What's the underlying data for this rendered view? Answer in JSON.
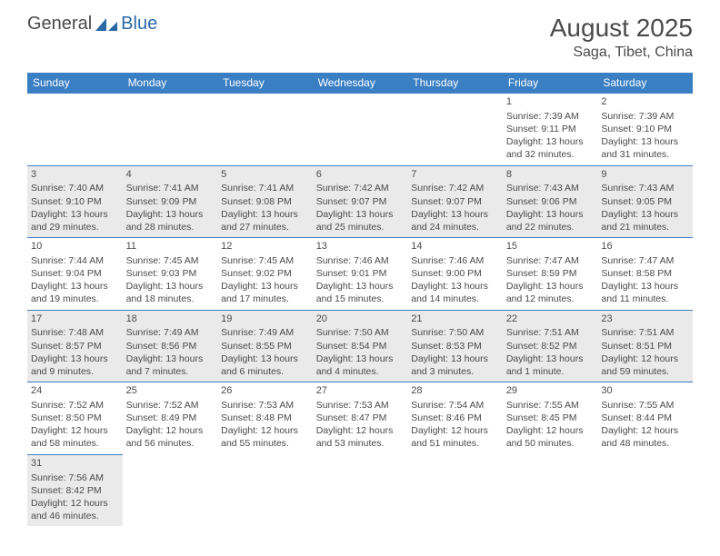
{
  "logo": {
    "text1": "General",
    "text2": "Blue"
  },
  "title": "August 2025",
  "location": "Saga, Tibet, China",
  "colors": {
    "header_bg": "#3a7fc4",
    "header_text": "#ffffff",
    "alt_row": "#eaeaea",
    "border": "#3a7fc4",
    "text": "#4a4a4a",
    "logo_blue": "#2968a8"
  },
  "weekdays": [
    "Sunday",
    "Monday",
    "Tuesday",
    "Wednesday",
    "Thursday",
    "Friday",
    "Saturday"
  ],
  "weeks": [
    [
      null,
      null,
      null,
      null,
      null,
      {
        "d": "1",
        "sr": "7:39 AM",
        "ss": "9:11 PM",
        "dl": "13 hours and 32 minutes."
      },
      {
        "d": "2",
        "sr": "7:39 AM",
        "ss": "9:10 PM",
        "dl": "13 hours and 31 minutes."
      }
    ],
    [
      {
        "d": "3",
        "sr": "7:40 AM",
        "ss": "9:10 PM",
        "dl": "13 hours and 29 minutes."
      },
      {
        "d": "4",
        "sr": "7:41 AM",
        "ss": "9:09 PM",
        "dl": "13 hours and 28 minutes."
      },
      {
        "d": "5",
        "sr": "7:41 AM",
        "ss": "9:08 PM",
        "dl": "13 hours and 27 minutes."
      },
      {
        "d": "6",
        "sr": "7:42 AM",
        "ss": "9:07 PM",
        "dl": "13 hours and 25 minutes."
      },
      {
        "d": "7",
        "sr": "7:42 AM",
        "ss": "9:07 PM",
        "dl": "13 hours and 24 minutes."
      },
      {
        "d": "8",
        "sr": "7:43 AM",
        "ss": "9:06 PM",
        "dl": "13 hours and 22 minutes."
      },
      {
        "d": "9",
        "sr": "7:43 AM",
        "ss": "9:05 PM",
        "dl": "13 hours and 21 minutes."
      }
    ],
    [
      {
        "d": "10",
        "sr": "7:44 AM",
        "ss": "9:04 PM",
        "dl": "13 hours and 19 minutes."
      },
      {
        "d": "11",
        "sr": "7:45 AM",
        "ss": "9:03 PM",
        "dl": "13 hours and 18 minutes."
      },
      {
        "d": "12",
        "sr": "7:45 AM",
        "ss": "9:02 PM",
        "dl": "13 hours and 17 minutes."
      },
      {
        "d": "13",
        "sr": "7:46 AM",
        "ss": "9:01 PM",
        "dl": "13 hours and 15 minutes."
      },
      {
        "d": "14",
        "sr": "7:46 AM",
        "ss": "9:00 PM",
        "dl": "13 hours and 14 minutes."
      },
      {
        "d": "15",
        "sr": "7:47 AM",
        "ss": "8:59 PM",
        "dl": "13 hours and 12 minutes."
      },
      {
        "d": "16",
        "sr": "7:47 AM",
        "ss": "8:58 PM",
        "dl": "13 hours and 11 minutes."
      }
    ],
    [
      {
        "d": "17",
        "sr": "7:48 AM",
        "ss": "8:57 PM",
        "dl": "13 hours and 9 minutes."
      },
      {
        "d": "18",
        "sr": "7:49 AM",
        "ss": "8:56 PM",
        "dl": "13 hours and 7 minutes."
      },
      {
        "d": "19",
        "sr": "7:49 AM",
        "ss": "8:55 PM",
        "dl": "13 hours and 6 minutes."
      },
      {
        "d": "20",
        "sr": "7:50 AM",
        "ss": "8:54 PM",
        "dl": "13 hours and 4 minutes."
      },
      {
        "d": "21",
        "sr": "7:50 AM",
        "ss": "8:53 PM",
        "dl": "13 hours and 3 minutes."
      },
      {
        "d": "22",
        "sr": "7:51 AM",
        "ss": "8:52 PM",
        "dl": "13 hours and 1 minute."
      },
      {
        "d": "23",
        "sr": "7:51 AM",
        "ss": "8:51 PM",
        "dl": "12 hours and 59 minutes."
      }
    ],
    [
      {
        "d": "24",
        "sr": "7:52 AM",
        "ss": "8:50 PM",
        "dl": "12 hours and 58 minutes."
      },
      {
        "d": "25",
        "sr": "7:52 AM",
        "ss": "8:49 PM",
        "dl": "12 hours and 56 minutes."
      },
      {
        "d": "26",
        "sr": "7:53 AM",
        "ss": "8:48 PM",
        "dl": "12 hours and 55 minutes."
      },
      {
        "d": "27",
        "sr": "7:53 AM",
        "ss": "8:47 PM",
        "dl": "12 hours and 53 minutes."
      },
      {
        "d": "28",
        "sr": "7:54 AM",
        "ss": "8:46 PM",
        "dl": "12 hours and 51 minutes."
      },
      {
        "d": "29",
        "sr": "7:55 AM",
        "ss": "8:45 PM",
        "dl": "12 hours and 50 minutes."
      },
      {
        "d": "30",
        "sr": "7:55 AM",
        "ss": "8:44 PM",
        "dl": "12 hours and 48 minutes."
      }
    ],
    [
      {
        "d": "31",
        "sr": "7:56 AM",
        "ss": "8:42 PM",
        "dl": "12 hours and 46 minutes."
      },
      null,
      null,
      null,
      null,
      null,
      null
    ]
  ]
}
